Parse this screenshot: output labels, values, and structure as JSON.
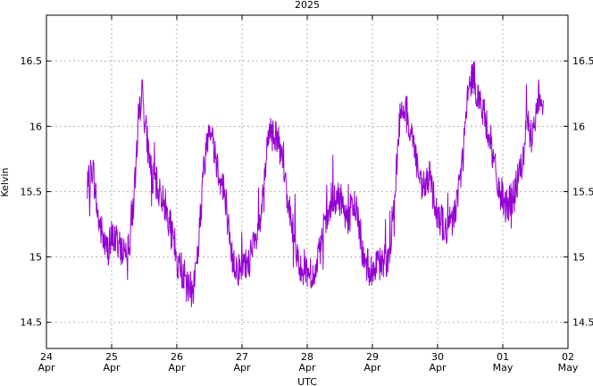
{
  "chart_data": {
    "type": "line",
    "title": "2025",
    "xlabel": "UTC",
    "ylabel": "Kelvin",
    "xlim": [
      "2025-04-24",
      "2025-05-02"
    ],
    "ylim": [
      14.3,
      16.85
    ],
    "grid": true,
    "y_ticks": [
      14.5,
      15,
      15.5,
      16,
      16.5
    ],
    "y_tick_labels": [
      "14.5",
      "15",
      "15.5",
      "16",
      "16.5"
    ],
    "x_ticks": [
      {
        "date": "2025-04-24",
        "day": "24",
        "month": "Apr"
      },
      {
        "date": "2025-04-25",
        "day": "25",
        "month": "Apr"
      },
      {
        "date": "2025-04-26",
        "day": "26",
        "month": "Apr"
      },
      {
        "date": "2025-04-27",
        "day": "27",
        "month": "Apr"
      },
      {
        "date": "2025-04-28",
        "day": "28",
        "month": "Apr"
      },
      {
        "date": "2025-04-29",
        "day": "29",
        "month": "Apr"
      },
      {
        "date": "2025-04-30",
        "day": "30",
        "month": "Apr"
      },
      {
        "date": "2025-05-01",
        "day": "01",
        "month": "May"
      },
      {
        "date": "2025-05-02",
        "day": "02",
        "month": "May"
      }
    ],
    "series": [
      {
        "color": "#9400d3",
        "noise": 0.14,
        "points": [
          [
            "2025-04-24T15:00",
            15.5
          ],
          [
            "2025-04-24T17:00",
            15.7
          ],
          [
            "2025-04-24T19:00",
            15.3
          ],
          [
            "2025-04-24T22:00",
            15.05
          ],
          [
            "2025-04-25T01:00",
            15.15
          ],
          [
            "2025-04-25T04:00",
            15.05
          ],
          [
            "2025-04-25T06:00",
            15.1
          ],
          [
            "2025-04-25T08:00",
            15.4
          ],
          [
            "2025-04-25T10:00",
            16.0
          ],
          [
            "2025-04-25T11:00",
            16.3
          ],
          [
            "2025-04-25T13:00",
            15.9
          ],
          [
            "2025-04-25T15:00",
            15.6
          ],
          [
            "2025-04-25T18:00",
            15.5
          ],
          [
            "2025-04-25T21:00",
            15.3
          ],
          [
            "2025-04-26T00:00",
            14.95
          ],
          [
            "2025-04-26T02:00",
            14.9
          ],
          [
            "2025-04-26T04:00",
            14.75
          ],
          [
            "2025-04-26T06:00",
            14.75
          ],
          [
            "2025-04-26T08:00",
            15.1
          ],
          [
            "2025-04-26T10:00",
            15.7
          ],
          [
            "2025-04-26T12:00",
            16.05
          ],
          [
            "2025-04-26T15:00",
            15.7
          ],
          [
            "2025-04-26T18:00",
            15.45
          ],
          [
            "2025-04-26T20:00",
            15.0
          ],
          [
            "2025-04-26T23:00",
            14.9
          ],
          [
            "2025-04-27T02:00",
            14.95
          ],
          [
            "2025-04-27T05:00",
            15.1
          ],
          [
            "2025-04-27T07:00",
            15.3
          ],
          [
            "2025-04-27T09:00",
            15.8
          ],
          [
            "2025-04-27T11:00",
            16.0
          ],
          [
            "2025-04-27T13:00",
            15.9
          ],
          [
            "2025-04-27T15:00",
            15.7
          ],
          [
            "2025-04-27T18:00",
            15.3
          ],
          [
            "2025-04-27T21:00",
            14.95
          ],
          [
            "2025-04-28T00:00",
            14.9
          ],
          [
            "2025-04-28T03:00",
            14.85
          ],
          [
            "2025-04-28T06:00",
            15.2
          ],
          [
            "2025-04-28T09:00",
            15.4
          ],
          [
            "2025-04-28T12:00",
            15.45
          ],
          [
            "2025-04-28T15:00",
            15.3
          ],
          [
            "2025-04-28T18:00",
            15.4
          ],
          [
            "2025-04-28T21:00",
            14.95
          ],
          [
            "2025-04-29T00:00",
            14.9
          ],
          [
            "2025-04-29T03:00",
            14.95
          ],
          [
            "2025-04-29T06:00",
            15.0
          ],
          [
            "2025-04-29T08:00",
            15.4
          ],
          [
            "2025-04-29T10:00",
            16.05
          ],
          [
            "2025-04-29T12:00",
            16.15
          ],
          [
            "2025-04-29T15:00",
            15.9
          ],
          [
            "2025-04-29T18:00",
            15.5
          ],
          [
            "2025-04-29T21:00",
            15.6
          ],
          [
            "2025-04-30T00:00",
            15.35
          ],
          [
            "2025-04-30T03:00",
            15.2
          ],
          [
            "2025-04-30T06:00",
            15.3
          ],
          [
            "2025-04-30T09:00",
            15.7
          ],
          [
            "2025-04-30T11:00",
            16.2
          ],
          [
            "2025-04-30T13:00",
            16.4
          ],
          [
            "2025-04-30T16:00",
            16.15
          ],
          [
            "2025-04-30T19:00",
            15.95
          ],
          [
            "2025-04-30T22:00",
            15.55
          ],
          [
            "2025-05-01T01:00",
            15.4
          ],
          [
            "2025-05-01T04:00",
            15.45
          ],
          [
            "2025-05-01T07:00",
            15.7
          ],
          [
            "2025-05-01T09:00",
            16.0
          ],
          [
            "2025-05-01T11:00",
            15.9
          ],
          [
            "2025-05-01T13:00",
            16.25
          ],
          [
            "2025-05-01T15:00",
            16.2
          ]
        ]
      }
    ]
  }
}
